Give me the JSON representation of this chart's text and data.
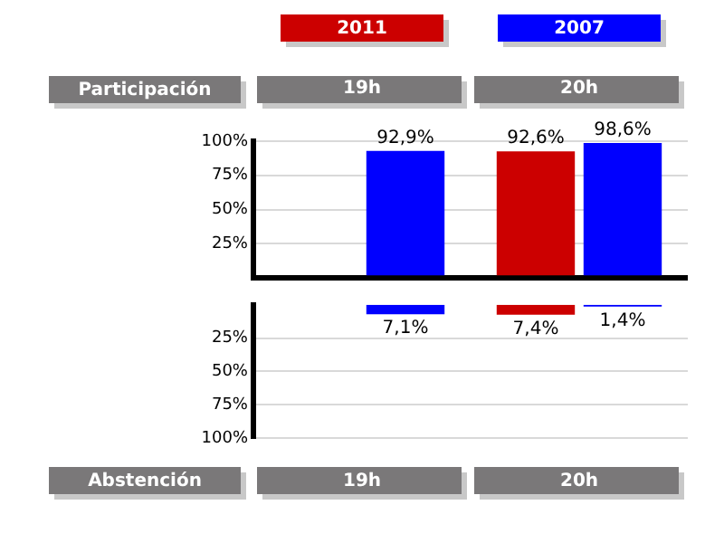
{
  "chart_data": [
    {
      "type": "bar",
      "categories": [
        "19h",
        "20h"
      ],
      "xlabel": "Participación",
      "series": [
        {
          "name": "2011",
          "color": "#cc0000",
          "values": [
            null,
            92.6
          ],
          "value_labels": [
            null,
            "92,6%"
          ]
        },
        {
          "name": "2007",
          "color": "#0000ff",
          "values": [
            92.9,
            98.6
          ],
          "value_labels": [
            "92,9%",
            "98,6%"
          ]
        }
      ],
      "ylim": [
        0,
        100
      ],
      "yticks": [
        {
          "value": 0,
          "label": null
        },
        {
          "value": 25,
          "label": "25%"
        },
        {
          "value": 50,
          "label": "50%"
        },
        {
          "value": 75,
          "label": "75%"
        },
        {
          "value": 100,
          "label": "100%"
        }
      ],
      "grid": "y",
      "legend": "top"
    },
    {
      "type": "bar",
      "categories": [
        "19h",
        "20h"
      ],
      "xlabel": "Abstención",
      "series": [
        {
          "color": "#cc0000",
          "values": [
            null,
            7.4
          ],
          "value_labels": [
            null,
            "7,4%"
          ]
        },
        {
          "color": "#0000ff",
          "values": [
            7.1,
            1.4
          ],
          "value_labels": [
            "7,1%",
            "1,4%"
          ]
        }
      ],
      "ylim": [
        100,
        0
      ],
      "yticks": [
        {
          "value": 25,
          "label": "25%"
        },
        {
          "value": 50,
          "label": "50%"
        },
        {
          "value": 75,
          "label": "75%"
        },
        {
          "value": 100,
          "label": "100%"
        }
      ],
      "grid": "y"
    }
  ]
}
